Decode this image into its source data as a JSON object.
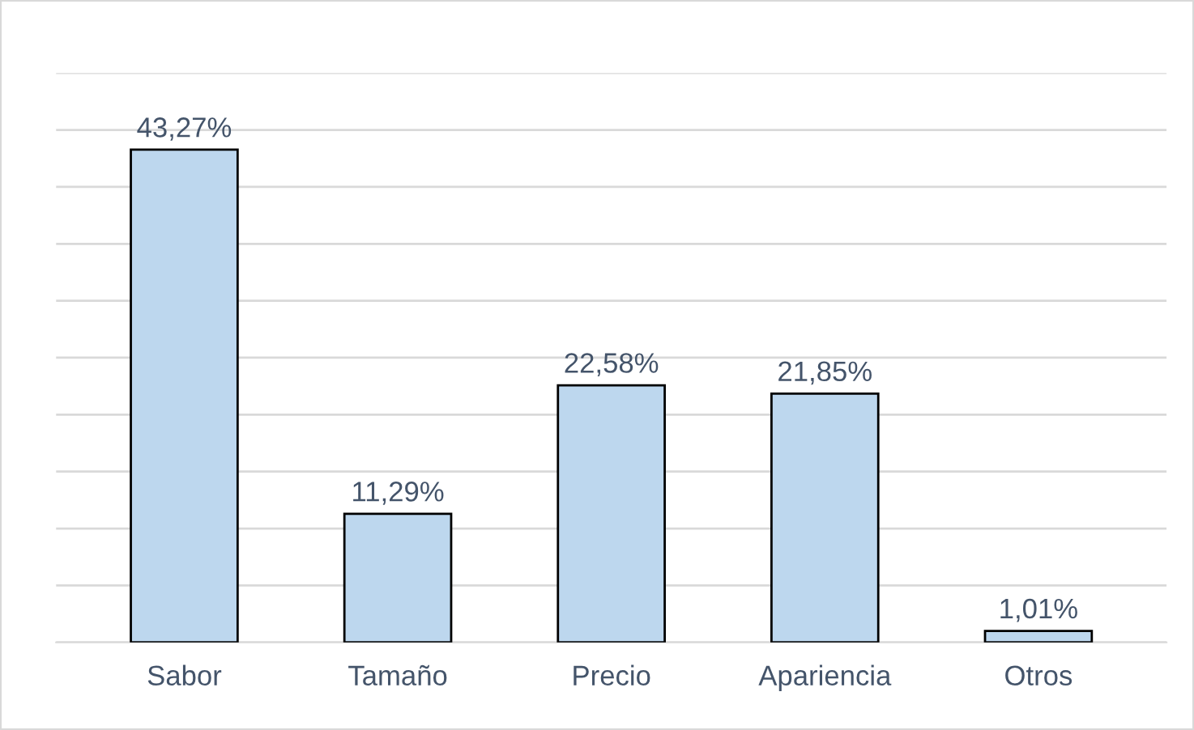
{
  "chart_data": {
    "type": "bar",
    "categories": [
      "Sabor",
      "Tamaño",
      "Precio",
      "Apariencia",
      "Otros"
    ],
    "values": [
      43.27,
      11.29,
      22.58,
      21.85,
      1.01
    ],
    "value_labels": [
      "43,27%",
      "11,29%",
      "22,58%",
      "21,85%",
      "1,01%"
    ],
    "color": "#bdd7ee",
    "ylim": [
      0,
      50
    ],
    "yticks": [
      {
        "value": 0,
        "label": null
      },
      {
        "value": 5,
        "label": null
      },
      {
        "value": 10,
        "label": null
      },
      {
        "value": 15,
        "label": null
      },
      {
        "value": 20,
        "label": null
      },
      {
        "value": 25,
        "label": null
      },
      {
        "value": 30,
        "label": null
      },
      {
        "value": 35,
        "label": null
      },
      {
        "value": 40,
        "label": null
      },
      {
        "value": 45,
        "label": null
      },
      {
        "value": 50,
        "label": null
      }
    ],
    "tick_labels": "x",
    "grid": "y"
  }
}
